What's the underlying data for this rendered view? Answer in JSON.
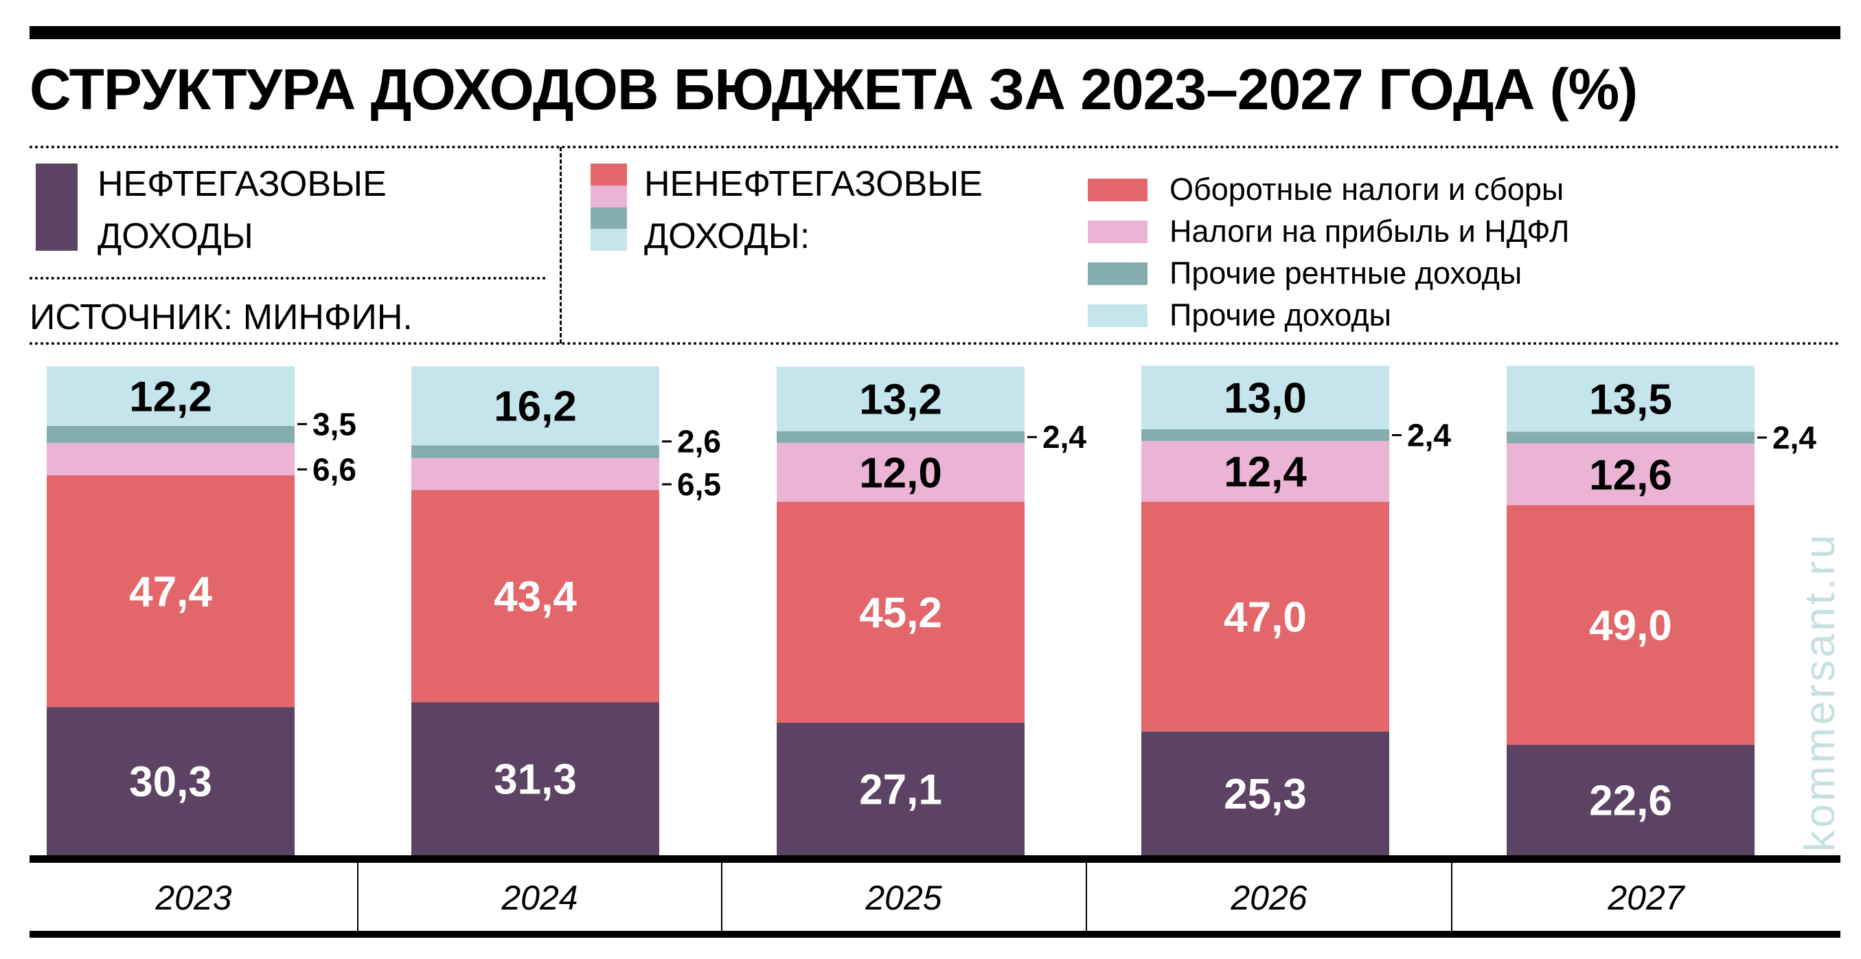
{
  "title": "СТРУКТУРА ДОХОДОВ БЮДЖЕТА ЗА 2023–2027 ГОДА (%)",
  "legend": {
    "oil_gas": {
      "line1": "НЕФТЕГАЗОВЫЕ",
      "line2": "ДОХОДЫ",
      "color": "#5c4263"
    },
    "non_oil_gas": {
      "line1": "НЕНЕФТЕГАЗОВЫЕ",
      "line2": "ДОХОДЫ:"
    },
    "items": [
      {
        "label": "Оборотные налоги и сборы",
        "color": "#e3676a"
      },
      {
        "label": "Налоги на прибыль и НДФЛ",
        "color": "#ebb3d4"
      },
      {
        "label": "Прочие рентные доходы",
        "color": "#86adad"
      },
      {
        "label": "Прочие доходы",
        "color": "#c4e5ec"
      }
    ]
  },
  "source": "ИСТОЧНИК: МИНФИН.",
  "watermark": "kommersant.ru",
  "chart_data": {
    "type": "bar",
    "stacked": true,
    "orientation": "vertical",
    "categories": [
      "2023",
      "2024",
      "2025",
      "2026",
      "2027"
    ],
    "ylim": [
      0,
      100
    ],
    "grid": false,
    "series": [
      {
        "name": "НЕФТЕГАЗОВЫЕ ДОХОДЫ",
        "color": "#5c4263",
        "values": [
          30.3,
          31.3,
          27.1,
          25.3,
          22.6
        ],
        "labels": [
          "30,3",
          "31,3",
          "27,1",
          "25,3",
          "22,6"
        ]
      },
      {
        "name": "Оборотные налоги и сборы",
        "color": "#e3676a",
        "values": [
          47.4,
          43.4,
          45.2,
          47.0,
          49.0
        ],
        "labels": [
          "47,4",
          "43,4",
          "45,2",
          "47,0",
          "49,0"
        ]
      },
      {
        "name": "Налоги на прибыль и НДФЛ",
        "color": "#ebb3d4",
        "values": [
          6.6,
          6.5,
          12.0,
          12.4,
          12.6
        ],
        "labels": [
          "6,6",
          "6,5",
          "12,0",
          "12,4",
          "12,6"
        ]
      },
      {
        "name": "Прочие рентные доходы",
        "color": "#86adad",
        "values": [
          3.5,
          2.6,
          2.4,
          2.4,
          2.4
        ],
        "labels": [
          "3,5",
          "2,6",
          "2,4",
          "2,4",
          "2,4"
        ]
      },
      {
        "name": "Прочие доходы",
        "color": "#c4e5ec",
        "values": [
          12.2,
          16.2,
          13.2,
          13.0,
          13.5
        ],
        "labels": [
          "12,2",
          "16,2",
          "13,2",
          "13,0",
          "13,5"
        ]
      }
    ]
  }
}
